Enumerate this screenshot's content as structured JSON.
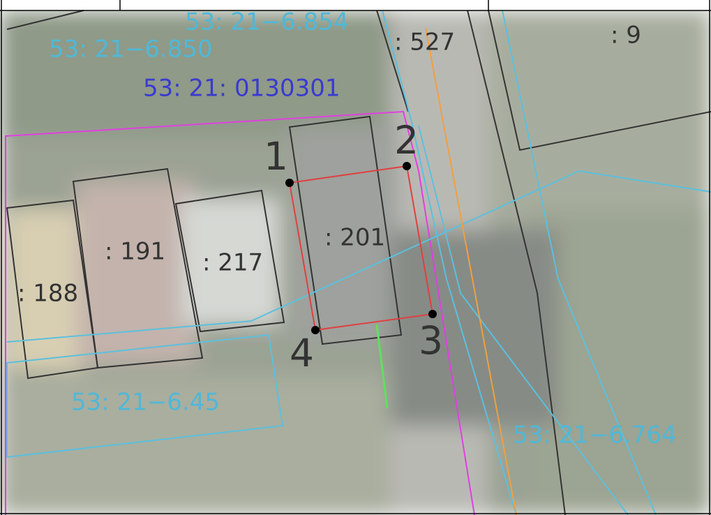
{
  "map": {
    "labels": [
      {
        "text": "53: 21−6.854"
      },
      {
        "text": "53: 21−6.850"
      },
      {
        "text": "53: 21: 0130301"
      },
      {
        "text": ": 527"
      },
      {
        "text": ": 9"
      },
      {
        "text": "1"
      },
      {
        "text": "2"
      },
      {
        "text": ": 201"
      },
      {
        "text": ": 191"
      },
      {
        "text": ": 217"
      },
      {
        "text": ": 188"
      },
      {
        "text": "3"
      },
      {
        "text": "4"
      },
      {
        "text": "53: 21−6.45"
      },
      {
        "text": "53: 21−6.764"
      }
    ]
  }
}
